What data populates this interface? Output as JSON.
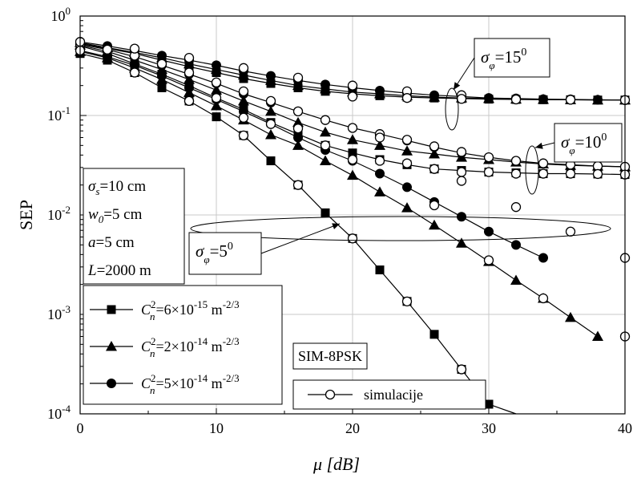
{
  "chart_data": {
    "type": "line",
    "xlabel": "μ [dB]",
    "ylabel": "SEP",
    "x_ticks": [
      "0",
      "10",
      "20",
      "30",
      "40"
    ],
    "y_ticks": [
      {
        "base": "10",
        "exp": "0",
        "value": 1
      },
      {
        "base": "10",
        "exp": "-1",
        "value": 0.1
      },
      {
        "base": "10",
        "exp": "-2",
        "value": 0.01
      },
      {
        "base": "10",
        "exp": "-3",
        "value": 0.001
      },
      {
        "base": "10",
        "exp": "-4",
        "value": 0.0001
      }
    ],
    "xlim": [
      0,
      40
    ],
    "ylim": [
      0.0001,
      1
    ],
    "y_scale": "log",
    "grid": true,
    "x": [
      0,
      2,
      4,
      6,
      8,
      10,
      12,
      14,
      16,
      18,
      20,
      22,
      24,
      26,
      28,
      30,
      32,
      34,
      36,
      38,
      40
    ],
    "series": [
      {
        "name": "C_n^2=6×10^-15 m^-2/3, σφ=5°",
        "marker": "square",
        "y": [
          0.42,
          0.36,
          0.27,
          0.19,
          0.14,
          0.097,
          0.063,
          0.035,
          0.02,
          0.0105,
          0.0058,
          0.0028,
          0.00135,
          0.00063,
          0.00028,
          0.000125,
          5.5e-05,
          null,
          null,
          null,
          null
        ]
      },
      {
        "name": "C_n^2=6×10^-15 m^-2/3, σφ=10°",
        "marker": "square",
        "y": [
          0.5,
          0.42,
          0.33,
          0.26,
          0.2,
          0.15,
          0.115,
          0.085,
          0.065,
          0.05,
          0.042,
          0.036,
          0.032,
          0.029,
          0.028,
          0.027,
          0.0265,
          0.026,
          0.026,
          0.0258,
          0.0255
        ]
      },
      {
        "name": "C_n^2=6×10^-15 m^-2/3, σφ=15°",
        "marker": "square",
        "y": [
          0.53,
          0.47,
          0.42,
          0.36,
          0.31,
          0.27,
          0.235,
          0.21,
          0.19,
          0.175,
          0.165,
          0.158,
          0.153,
          0.15,
          0.148,
          0.146,
          0.145,
          0.144,
          0.144,
          0.143,
          0.143
        ]
      },
      {
        "name": "C_n^2=2×10^-14 m^-2/3, σφ=5°",
        "marker": "triangle",
        "y": [
          0.44,
          0.38,
          0.3,
          0.23,
          0.17,
          0.125,
          0.09,
          0.064,
          0.05,
          0.035,
          0.025,
          0.017,
          0.0118,
          0.0079,
          0.0052,
          0.0034,
          0.0022,
          0.00145,
          0.00093,
          0.0006,
          null
        ]
      },
      {
        "name": "C_n^2=2×10^-14 m^-2/3, σφ=10°",
        "marker": "triangle",
        "y": [
          0.51,
          0.44,
          0.36,
          0.29,
          0.23,
          0.18,
          0.14,
          0.11,
          0.085,
          0.068,
          0.057,
          0.05,
          0.044,
          0.041,
          0.038,
          0.036,
          0.034,
          0.0325,
          0.0315,
          0.031,
          0.0305
        ]
      },
      {
        "name": "C_n^2=2×10^-14 m^-2/3, σφ=15°",
        "marker": "triangle",
        "y": [
          0.54,
          0.48,
          0.43,
          0.38,
          0.33,
          0.29,
          0.255,
          0.225,
          0.2,
          0.185,
          0.172,
          0.165,
          0.158,
          0.153,
          0.15,
          0.148,
          0.146,
          0.145,
          0.144,
          0.143,
          0.143
        ]
      },
      {
        "name": "C_n^2=5×10^-14 m^-2/3, σφ=5°",
        "marker": "circle",
        "y": [
          0.45,
          0.39,
          0.32,
          0.25,
          0.19,
          0.145,
          0.11,
          0.082,
          0.06,
          0.045,
          0.035,
          0.026,
          0.019,
          0.0135,
          0.0096,
          0.0068,
          0.005,
          0.0037,
          null,
          null,
          null
        ]
      },
      {
        "name": "C_n^2=5×10^-14 m^-2/3, σφ=10°",
        "marker": "circle",
        "y": [
          0.52,
          0.46,
          0.39,
          0.32,
          0.26,
          0.21,
          0.165,
          0.135,
          0.11,
          0.09,
          0.075,
          0.065,
          0.056,
          0.048,
          0.042,
          0.038,
          0.035,
          0.033,
          0.032,
          0.031,
          0.0305
        ]
      },
      {
        "name": "C_n^2=5×10^-14 m^-2/3, σφ=15°",
        "marker": "circle",
        "y": [
          0.55,
          0.5,
          0.45,
          0.4,
          0.36,
          0.32,
          0.28,
          0.25,
          0.225,
          0.205,
          0.19,
          0.178,
          0.168,
          0.16,
          0.155,
          0.15,
          0.148,
          0.146,
          0.145,
          0.144,
          0.143
        ]
      },
      {
        "name": "simulacije",
        "marker": "open-circle",
        "points": [
          [
            0,
            0.52
          ],
          [
            2,
            0.46
          ],
          [
            4,
            0.4
          ],
          [
            6,
            0.33
          ],
          [
            8,
            0.27
          ],
          [
            10,
            0.215
          ],
          [
            12,
            0.175
          ],
          [
            14,
            0.14
          ],
          [
            16,
            0.11
          ],
          [
            18,
            0.09
          ],
          [
            20,
            0.075
          ],
          [
            22,
            0.065
          ],
          [
            24,
            0.057
          ],
          [
            26,
            0.049
          ],
          [
            28,
            0.043
          ],
          [
            30,
            0.038
          ],
          [
            32,
            0.035
          ],
          [
            34,
            0.033
          ],
          [
            36,
            0.032
          ],
          [
            38,
            0.031
          ],
          [
            40,
            0.0305
          ],
          [
            0,
            0.45
          ],
          [
            4,
            0.27
          ],
          [
            8,
            0.14
          ],
          [
            12,
            0.063
          ],
          [
            16,
            0.02
          ],
          [
            20,
            0.0058
          ],
          [
            24,
            0.00135
          ],
          [
            28,
            0.00028
          ],
          [
            8,
            0.14
          ],
          [
            10,
            0.15
          ],
          [
            12,
            0.095
          ],
          [
            14,
            0.082
          ],
          [
            16,
            0.074
          ],
          [
            18,
            0.05
          ],
          [
            20,
            0.036
          ],
          [
            22,
            0.035
          ],
          [
            24,
            0.033
          ],
          [
            26,
            0.029
          ],
          [
            28,
            0.027
          ],
          [
            30,
            0.027
          ],
          [
            32,
            0.026
          ],
          [
            34,
            0.026
          ],
          [
            36,
            0.026
          ],
          [
            38,
            0.0258
          ],
          [
            40,
            0.0255
          ],
          [
            0,
            0.55
          ],
          [
            4,
            0.47
          ],
          [
            8,
            0.38
          ],
          [
            12,
            0.3
          ],
          [
            16,
            0.24
          ],
          [
            20,
            0.2
          ],
          [
            24,
            0.175
          ],
          [
            28,
            0.16
          ],
          [
            32,
            0.148
          ],
          [
            36,
            0.145
          ],
          [
            40,
            0.143
          ],
          [
            20,
            0.155
          ],
          [
            24,
            0.15
          ],
          [
            28,
            0.147
          ],
          [
            32,
            0.145
          ],
          [
            36,
            0.144
          ],
          [
            22,
            0.06
          ],
          [
            26,
            0.0125
          ],
          [
            30,
            0.0035
          ],
          [
            34,
            0.00145
          ],
          [
            40,
            0.0006
          ],
          [
            28,
            0.022
          ],
          [
            32,
            0.012
          ],
          [
            36,
            0.0068
          ],
          [
            40,
            0.0037
          ]
        ]
      }
    ],
    "legend": {
      "entries": [
        {
          "marker": "square",
          "base": "C",
          "sub": "n",
          "sup": "2",
          "value_text": "=6×10",
          "value_exp": "-15",
          "unit": " m",
          "unit_exp": "-2/3"
        },
        {
          "marker": "triangle",
          "base": "C",
          "sub": "n",
          "sup": "2",
          "value_text": "=2×10",
          "value_exp": "-14",
          "unit": " m",
          "unit_exp": "-2/3"
        },
        {
          "marker": "circle",
          "base": "C",
          "sub": "n",
          "sup": "2",
          "value_text": "=5×10",
          "value_exp": "-14",
          "unit": " m",
          "unit_exp": "-2/3"
        }
      ],
      "placement": "bottom-left"
    },
    "params": [
      {
        "sym": "σ",
        "sub": "s",
        "text": "=10 cm"
      },
      {
        "sym": "w",
        "sub": "0",
        "text": "=5 cm"
      },
      {
        "sym": "a",
        "sub": "",
        "text": "=5 cm"
      },
      {
        "sym": "L",
        "sub": "",
        "text": "=2000 m"
      }
    ],
    "annotations": [
      {
        "sym": "σ",
        "sub": "φ",
        "text": "=15",
        "sup": "0"
      },
      {
        "sym": "σ",
        "sub": "φ",
        "text": "=10",
        "sup": "0"
      },
      {
        "sym": "σ",
        "sub": "φ",
        "text": "=5",
        "sup": "0"
      }
    ],
    "mod_label": "SIM-8PSK",
    "sim_legend_label": "simulacije"
  }
}
